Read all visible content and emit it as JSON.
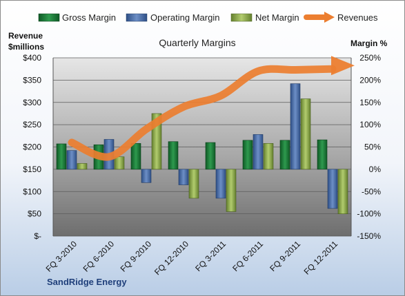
{
  "chart_data": {
    "type": "bar",
    "title": "Quarterly Margins",
    "company": "SandRidge Energy",
    "left_axis_label_line1": "Revenue",
    "left_axis_label_line2": "$millions",
    "right_axis_label": "Margin %",
    "categories": [
      "FQ 3-2010",
      "FQ 6-2010",
      "FQ 9-2010",
      "FQ 12-2010",
      "FQ 3-2011",
      "FQ 6-2011",
      "FQ 9-2011",
      "FQ 12-2011"
    ],
    "left_ylim": [
      0,
      400
    ],
    "left_ticks": [
      0,
      50,
      100,
      150,
      200,
      250,
      300,
      350,
      400
    ],
    "left_tick_labels": [
      "$-",
      "$50",
      "$100",
      "$150",
      "$200",
      "$250",
      "$300",
      "$350",
      "$400"
    ],
    "right_ylim": [
      -150,
      250
    ],
    "right_ticks": [
      -150,
      -100,
      -50,
      0,
      50,
      100,
      150,
      200,
      250
    ],
    "right_tick_labels": [
      "-150%",
      "-100%",
      "-50%",
      "0%",
      "50%",
      "100%",
      "150%",
      "200%",
      "250%"
    ],
    "series": [
      {
        "name": "Gross Margin",
        "axis": "right",
        "kind": "bar",
        "values": [
          57,
          55,
          58,
          62,
          60,
          65,
          65,
          66
        ]
      },
      {
        "name": "Operating Margin",
        "axis": "right",
        "kind": "bar",
        "values": [
          42,
          67,
          -30,
          -35,
          -65,
          78,
          192,
          -88
        ]
      },
      {
        "name": "Net Margin",
        "axis": "right",
        "kind": "bar",
        "values": [
          13,
          28,
          125,
          -65,
          -95,
          58,
          158,
          -100
        ]
      },
      {
        "name": "Revenues",
        "axis": "left",
        "kind": "line",
        "values": [
          210,
          178,
          240,
          290,
          315,
          370,
          373,
          375
        ]
      }
    ],
    "colors": {
      "Gross Margin": "#1f7a3a",
      "Operating Margin": "#4a6faa",
      "Net Margin": "#8fab4b",
      "Revenues": "#ec7e30"
    },
    "legend_position": "top",
    "grid": true
  }
}
